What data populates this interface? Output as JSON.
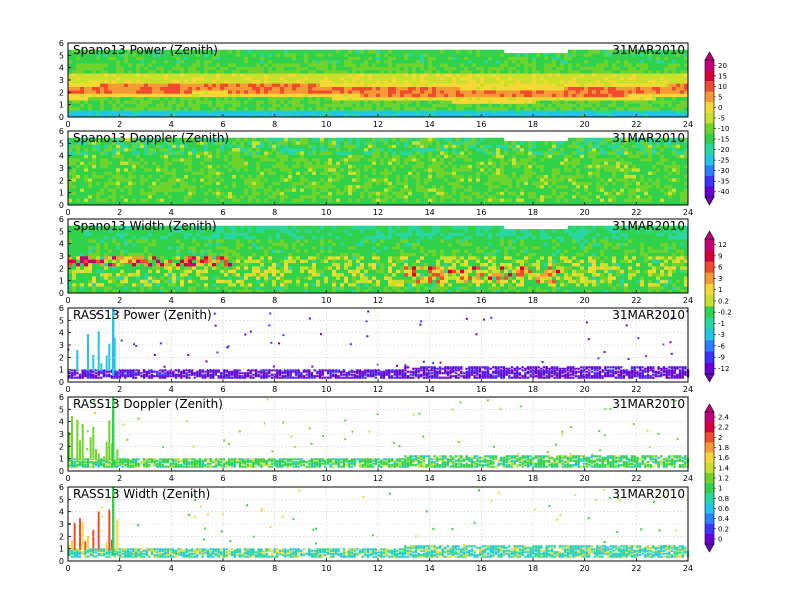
{
  "chart_data": [
    {
      "type": "heatmap",
      "title": "Spano13 Power (Zenith)",
      "date": "31MAR2010",
      "xlim": [
        0,
        24
      ],
      "ylim": [
        0,
        6
      ],
      "xticks": [
        0,
        2,
        4,
        6,
        8,
        10,
        12,
        14,
        16,
        18,
        20,
        22,
        24
      ],
      "yticks": [
        0,
        1,
        2,
        3,
        4,
        5,
        6
      ],
      "colorbar": 0
    },
    {
      "type": "heatmap",
      "title": "Spano13 Doppler (Zenith)",
      "date": "31MAR2010",
      "xlim": [
        0,
        24
      ],
      "ylim": [
        0,
        6
      ],
      "xticks": [
        0,
        2,
        4,
        6,
        8,
        10,
        12,
        14,
        16,
        18,
        20,
        22,
        24
      ],
      "yticks": [
        0,
        1,
        2,
        3,
        4,
        5,
        6
      ]
    },
    {
      "type": "heatmap",
      "title": "Spano13 Width (Zenith)",
      "date": "31MAR2010",
      "xlim": [
        0,
        24
      ],
      "ylim": [
        0,
        6
      ],
      "xticks": [
        0,
        2,
        4,
        6,
        8,
        10,
        12,
        14,
        16,
        18,
        20,
        22,
        24
      ],
      "yticks": [
        0,
        1,
        2,
        3,
        4,
        5,
        6
      ],
      "colorbar": 1
    },
    {
      "type": "heatmap",
      "title": "RASS13 Power (Zenith)",
      "date": "31MAR2010",
      "xlim": [
        0,
        24
      ],
      "ylim": [
        0,
        6
      ],
      "xticks": [
        0,
        2,
        4,
        6,
        8,
        10,
        12,
        14,
        16,
        18,
        20,
        22,
        24
      ],
      "yticks": [
        0,
        1,
        2,
        3,
        4,
        5,
        6
      ]
    },
    {
      "type": "heatmap",
      "title": "RASS13 Doppler (Zenith)",
      "date": "31MAR2010",
      "xlim": [
        0,
        24
      ],
      "ylim": [
        0,
        6
      ],
      "xticks": [
        0,
        2,
        4,
        6,
        8,
        10,
        12,
        14,
        16,
        18,
        20,
        22,
        24
      ],
      "yticks": [
        0,
        1,
        2,
        3,
        4,
        5,
        6
      ],
      "colorbar": 2
    },
    {
      "type": "heatmap",
      "title": "RASS13 Width (Zenith)",
      "date": "31MAR2010",
      "xlim": [
        0,
        24
      ],
      "ylim": [
        0,
        6
      ],
      "xticks": [
        0,
        2,
        4,
        6,
        8,
        10,
        12,
        14,
        16,
        18,
        20,
        22,
        24
      ],
      "yticks": [
        0,
        1,
        2,
        3,
        4,
        5,
        6
      ]
    }
  ],
  "colorbars": [
    {
      "labels": [
        "20",
        "15",
        "10",
        "5",
        "0",
        "-5",
        "-10",
        "-15",
        "-20",
        "-25",
        "-30",
        "-35",
        "-40"
      ]
    },
    {
      "labels": [
        "12",
        "9",
        "6",
        "3",
        "1",
        "0.2",
        "-0.2",
        "-1",
        "-3",
        "-6",
        "-9",
        "-12"
      ]
    },
    {
      "labels": [
        "2.4",
        "2.2",
        "2",
        "1.8",
        "1.6",
        "1.4",
        "1.2",
        "1",
        "0.8",
        "0.6",
        "0.4",
        "0.2",
        "0"
      ]
    }
  ],
  "palette": [
    "#6a00d6",
    "#3c35ff",
    "#2c7fff",
    "#22c4e8",
    "#2ad6a0",
    "#2fd24a",
    "#6ed32a",
    "#c8e02a",
    "#f4d935",
    "#f59a35",
    "#ef4b2c",
    "#d6003c",
    "#c4007a"
  ]
}
